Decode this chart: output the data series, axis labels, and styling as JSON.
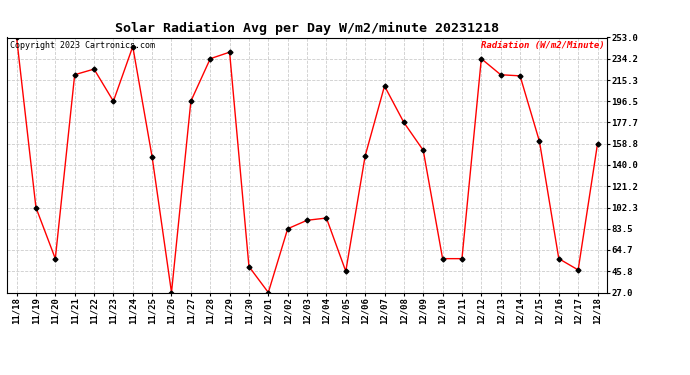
{
  "title": "Solar Radiation Avg per Day W/m2/minute 20231218",
  "copyright_text": "Copyright 2023 Cartronics.com",
  "legend_label": "Radiation (W/m2/Minute)",
  "dates": [
    "11/18",
    "11/19",
    "11/20",
    "11/21",
    "11/22",
    "11/23",
    "11/24",
    "11/25",
    "11/26",
    "11/27",
    "11/28",
    "11/29",
    "11/30",
    "12/01",
    "12/02",
    "12/03",
    "12/04",
    "12/05",
    "12/06",
    "12/07",
    "12/08",
    "12/09",
    "12/10",
    "12/11",
    "12/12",
    "12/13",
    "12/14",
    "12/15",
    "12/16",
    "12/17",
    "12/18"
  ],
  "values": [
    253.0,
    102.3,
    57.0,
    220.0,
    225.0,
    196.5,
    245.0,
    147.0,
    27.0,
    196.5,
    234.2,
    240.0,
    50.0,
    27.0,
    83.5,
    91.0,
    93.0,
    45.8,
    148.0,
    210.0,
    177.7,
    153.0,
    57.0,
    57.0,
    234.2,
    220.0,
    219.0,
    161.0,
    57.0,
    47.0,
    158.8
  ],
  "yticks": [
    27.0,
    45.8,
    64.7,
    83.5,
    102.3,
    121.2,
    140.0,
    158.8,
    177.7,
    196.5,
    215.3,
    234.2,
    253.0
  ],
  "ylim": [
    27.0,
    253.0
  ],
  "line_color": "red",
  "marker": "D",
  "marker_color": "black",
  "marker_size": 2.5,
  "bg_color": "white",
  "grid_color": "#cccccc",
  "title_fontsize": 9.5,
  "legend_color": "red",
  "copyright_color": "black",
  "copyright_fontsize": 6.0,
  "axis_fontsize": 6.5,
  "ytick_fontsize": 6.5,
  "line_width": 1.0
}
